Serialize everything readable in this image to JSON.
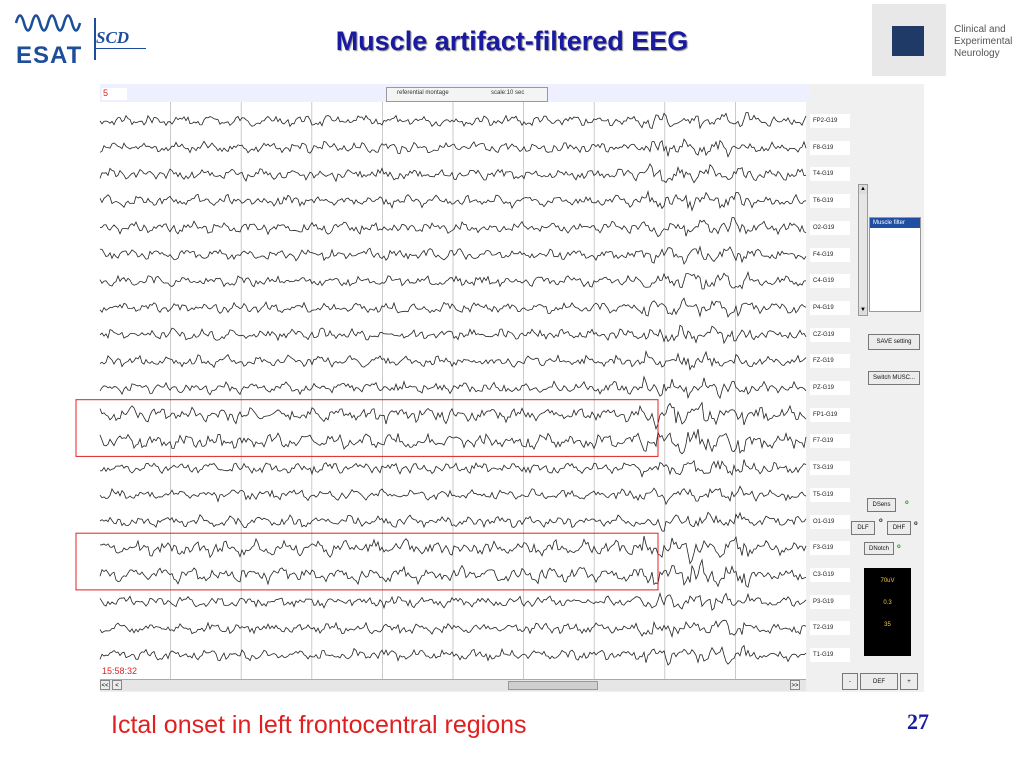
{
  "header": {
    "title": "Muscle artifact-filtered EEG",
    "logo_left_text": "ESAT",
    "logo_scd_text": "SCD",
    "logo_right_lines": [
      "Clinical and",
      "Experimental",
      "Neurology"
    ]
  },
  "viewer": {
    "page_field": "5",
    "montage_label": "referential montage",
    "scale_label": "scale:10 sec",
    "timestamp": "15:58:32",
    "channels": [
      "FP2-G19",
      "F8-G19",
      "T4-G19",
      "T6-G19",
      "O2-G19",
      "F4-G19",
      "C4-G19",
      "P4-G19",
      "CZ-G19",
      "FZ-G19",
      "PZ-G19",
      "FP1-G19",
      "F7-G19",
      "T3-G19",
      "T5-G19",
      "O1-G19",
      "F3-G19",
      "C3-G19",
      "P3-G19",
      "T2-G19",
      "T1-G19"
    ],
    "filter_list_selected": "Muscle filter",
    "save_button": "SAVE setting",
    "switch_button": "Switch MUSC...",
    "dsens_button": "DSens",
    "dlf_button": "DLF",
    "dhf_button": "DHF",
    "dnotch_button": "DNotch",
    "indicator": "o",
    "readouts": [
      "70uV",
      "0.3",
      "35"
    ],
    "minus_button": "-",
    "def_button": "DEF",
    "plus_button": "+",
    "hscroll_left_a": "<<",
    "hscroll_left_b": "<",
    "hscroll_right": ">>",
    "colors": {
      "trace": "#222222",
      "highlight": "#e02020",
      "selection": "#1f4ea3"
    }
  },
  "caption": "Ictal onset in left frontocentral regions",
  "page_number": "27"
}
